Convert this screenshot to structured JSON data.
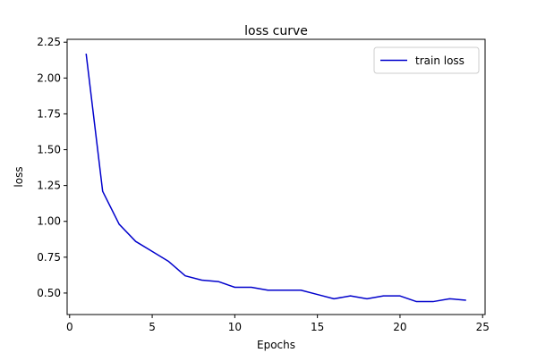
{
  "chart_data": {
    "type": "line",
    "title": "loss curve",
    "xlabel": "Epochs",
    "ylabel": "loss",
    "xlim": [
      -0.15,
      25.15
    ],
    "ylim": [
      0.35,
      2.27
    ],
    "x_ticks": [
      0,
      5,
      10,
      15,
      20,
      25
    ],
    "y_ticks": [
      0.5,
      0.75,
      1.0,
      1.25,
      1.5,
      1.75,
      2.0,
      2.25
    ],
    "x_tick_labels": [
      "0",
      "5",
      "10",
      "15",
      "20",
      "25"
    ],
    "y_tick_labels": [
      "0.50",
      "0.75",
      "1.00",
      "1.25",
      "1.50",
      "1.75",
      "2.00",
      "2.25"
    ],
    "grid": false,
    "legend_position": "top-right",
    "series": [
      {
        "name": "train loss",
        "color": "#0000cc",
        "x": [
          1,
          2,
          3,
          4,
          5,
          6,
          7,
          8,
          9,
          10,
          11,
          12,
          13,
          14,
          15,
          16,
          17,
          18,
          19,
          20,
          21,
          22,
          23,
          24
        ],
        "y": [
          2.17,
          1.21,
          0.98,
          0.86,
          0.79,
          0.72,
          0.62,
          0.59,
          0.58,
          0.54,
          0.54,
          0.52,
          0.52,
          0.52,
          0.49,
          0.46,
          0.48,
          0.46,
          0.48,
          0.48,
          0.44,
          0.44,
          0.46,
          0.45
        ]
      }
    ]
  }
}
